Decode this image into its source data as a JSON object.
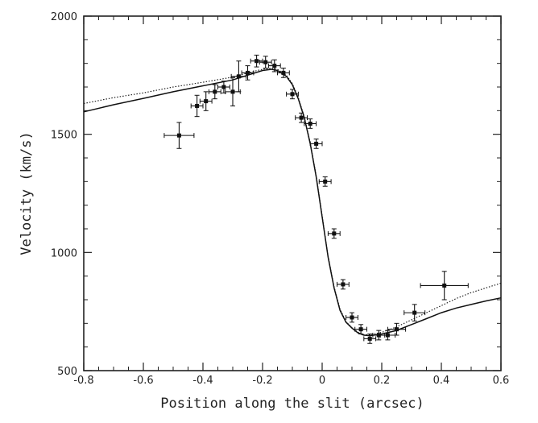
{
  "chart_data": {
    "type": "scatter",
    "title": "",
    "xlabel": "Position along the slit (arcsec)",
    "ylabel": "Velocity (km/s)",
    "xlim": [
      -0.8,
      0.6
    ],
    "ylim": [
      500,
      2000
    ],
    "xticks": [
      -0.8,
      -0.6,
      -0.4,
      -0.2,
      0,
      0.2,
      0.4,
      0.6
    ],
    "xtick_labels": [
      "-0.8",
      "-0.6",
      "-0.4",
      "-0.2",
      "0",
      "0.2",
      "0.4",
      "0.6"
    ],
    "yticks": [
      500,
      1000,
      1500,
      2000
    ],
    "ytick_labels": [
      "500",
      "1000",
      "1500",
      "2000"
    ],
    "grid": false,
    "series": [
      {
        "style": "points-with-errorbars",
        "points": [
          {
            "x": -0.48,
            "y": 1495,
            "xerr": 0.05,
            "yerr": 55
          },
          {
            "x": -0.42,
            "y": 1620,
            "xerr": 0.02,
            "yerr": 45
          },
          {
            "x": -0.39,
            "y": 1640,
            "xerr": 0.02,
            "yerr": 40
          },
          {
            "x": -0.36,
            "y": 1680,
            "xerr": 0.02,
            "yerr": 30
          },
          {
            "x": -0.33,
            "y": 1700,
            "xerr": 0.02,
            "yerr": 25
          },
          {
            "x": -0.3,
            "y": 1680,
            "xerr": 0.025,
            "yerr": 60
          },
          {
            "x": -0.28,
            "y": 1745,
            "xerr": 0.025,
            "yerr": 65
          },
          {
            "x": -0.25,
            "y": 1760,
            "xerr": 0.02,
            "yerr": 30
          },
          {
            "x": -0.22,
            "y": 1810,
            "xerr": 0.02,
            "yerr": 25
          },
          {
            "x": -0.19,
            "y": 1805,
            "xerr": 0.02,
            "yerr": 25
          },
          {
            "x": -0.16,
            "y": 1790,
            "xerr": 0.02,
            "yerr": 25
          },
          {
            "x": -0.13,
            "y": 1760,
            "xerr": 0.02,
            "yerr": 20
          },
          {
            "x": -0.1,
            "y": 1670,
            "xerr": 0.02,
            "yerr": 20
          },
          {
            "x": -0.07,
            "y": 1570,
            "xerr": 0.02,
            "yerr": 20
          },
          {
            "x": -0.04,
            "y": 1545,
            "xerr": 0.02,
            "yerr": 20
          },
          {
            "x": -0.02,
            "y": 1460,
            "xerr": 0.02,
            "yerr": 20
          },
          {
            "x": 0.01,
            "y": 1300,
            "xerr": 0.02,
            "yerr": 20
          },
          {
            "x": 0.04,
            "y": 1080,
            "xerr": 0.02,
            "yerr": 20
          },
          {
            "x": 0.07,
            "y": 865,
            "xerr": 0.02,
            "yerr": 20
          },
          {
            "x": 0.1,
            "y": 725,
            "xerr": 0.02,
            "yerr": 20
          },
          {
            "x": 0.13,
            "y": 675,
            "xerr": 0.02,
            "yerr": 20
          },
          {
            "x": 0.16,
            "y": 635,
            "xerr": 0.02,
            "yerr": 20
          },
          {
            "x": 0.19,
            "y": 650,
            "xerr": 0.02,
            "yerr": 20
          },
          {
            "x": 0.22,
            "y": 650,
            "xerr": 0.025,
            "yerr": 20
          },
          {
            "x": 0.25,
            "y": 675,
            "xerr": 0.03,
            "yerr": 25
          },
          {
            "x": 0.31,
            "y": 745,
            "xerr": 0.035,
            "yerr": 35
          },
          {
            "x": 0.41,
            "y": 860,
            "xerr": 0.08,
            "yerr": 60
          }
        ]
      },
      {
        "style": "solid-line",
        "x": [
          -0.8,
          -0.7,
          -0.6,
          -0.5,
          -0.4,
          -0.3,
          -0.25,
          -0.2,
          -0.17,
          -0.15,
          -0.12,
          -0.1,
          -0.08,
          -0.06,
          -0.04,
          -0.02,
          0,
          0.02,
          0.04,
          0.06,
          0.08,
          0.1,
          0.12,
          0.14,
          0.16,
          0.2,
          0.25,
          0.3,
          0.35,
          0.4,
          0.45,
          0.5,
          0.55,
          0.6
        ],
        "y": [
          1595,
          1625,
          1652,
          1680,
          1705,
          1730,
          1750,
          1770,
          1775,
          1770,
          1745,
          1710,
          1650,
          1570,
          1460,
          1320,
          1150,
          980,
          850,
          755,
          705,
          680,
          660,
          650,
          648,
          655,
          670,
          695,
          720,
          745,
          765,
          780,
          795,
          808
        ]
      },
      {
        "style": "dotted-line",
        "x": [
          -0.8,
          -0.7,
          -0.6,
          -0.5,
          -0.4,
          -0.3,
          -0.25,
          -0.2,
          -0.17,
          -0.15,
          -0.12,
          -0.1,
          -0.08,
          -0.06,
          -0.04,
          -0.02,
          0,
          0.02,
          0.04,
          0.06,
          0.08,
          0.1,
          0.12,
          0.14,
          0.16,
          0.2,
          0.25,
          0.3,
          0.35,
          0.4,
          0.45,
          0.5,
          0.55,
          0.6
        ],
        "y": [
          1630,
          1655,
          1675,
          1700,
          1720,
          1742,
          1760,
          1775,
          1780,
          1775,
          1750,
          1715,
          1655,
          1575,
          1465,
          1325,
          1155,
          985,
          855,
          760,
          708,
          682,
          662,
          652,
          652,
          662,
          685,
          715,
          745,
          775,
          805,
          830,
          850,
          870
        ]
      }
    ]
  }
}
